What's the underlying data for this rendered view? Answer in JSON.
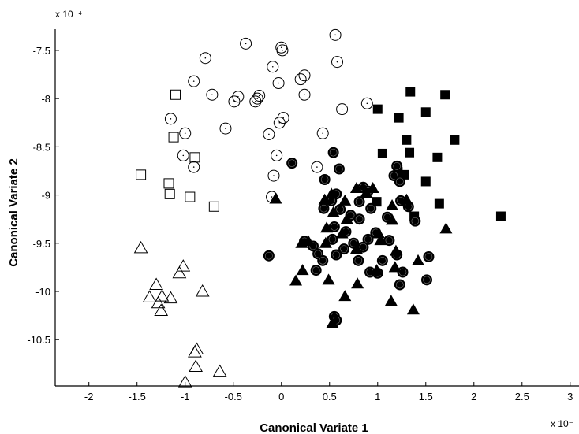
{
  "chart_data": {
    "type": "scatter",
    "title": "",
    "xlabel": "Canonical Variate 1",
    "ylabel": "Canonical Variate 2",
    "x_exponent_label": "x 10⁻",
    "y_exponent_label": "x 10⁻⁴",
    "xlim": [
      -2.35,
      3.1
    ],
    "ylim": [
      -10.98,
      -7.28
    ],
    "x_ticks": [
      -2,
      -1.5,
      -1,
      -0.5,
      0,
      0.5,
      1,
      1.5,
      2,
      2.5,
      3
    ],
    "x_tick_labels": [
      "-2",
      "-1.5",
      "-1",
      "-0.5",
      "0",
      "0.5",
      "1",
      "1.5",
      "2",
      "2.5",
      "3"
    ],
    "y_ticks": [
      -7.5,
      -8,
      -8.5,
      -9,
      -9.5,
      -10,
      -10.5
    ],
    "y_tick_labels": [
      "-7.5",
      "-8",
      "-8.5",
      "-9",
      "-9.5",
      "-10",
      "-10.5"
    ],
    "grid": false,
    "legend": "none",
    "series": [
      {
        "marker": "open-circle",
        "points": [
          [
            -0.37,
            -7.43
          ],
          [
            0.0,
            -7.47
          ],
          [
            0.01,
            -7.5
          ],
          [
            0.56,
            -7.34
          ],
          [
            -0.79,
            -7.58
          ],
          [
            0.58,
            -7.62
          ],
          [
            -0.09,
            -7.67
          ],
          [
            0.24,
            -7.76
          ],
          [
            0.2,
            -7.8
          ],
          [
            -0.91,
            -7.82
          ],
          [
            -0.03,
            -7.84
          ],
          [
            -0.72,
            -7.96
          ],
          [
            -0.45,
            -7.98
          ],
          [
            -0.23,
            -7.97
          ],
          [
            -0.25,
            -8.0
          ],
          [
            -0.49,
            -8.03
          ],
          [
            -0.27,
            -8.03
          ],
          [
            0.24,
            -7.96
          ],
          [
            0.89,
            -8.05
          ],
          [
            0.63,
            -8.11
          ],
          [
            0.02,
            -8.2
          ],
          [
            -0.02,
            -8.25
          ],
          [
            -1.15,
            -8.21
          ],
          [
            -1.0,
            -8.36
          ],
          [
            -0.58,
            -8.31
          ],
          [
            -0.13,
            -8.37
          ],
          [
            0.43,
            -8.36
          ],
          [
            -0.05,
            -8.59
          ],
          [
            -1.02,
            -8.59
          ],
          [
            -0.91,
            -8.71
          ],
          [
            0.37,
            -8.71
          ],
          [
            -0.08,
            -8.8
          ],
          [
            -0.1,
            -9.02
          ]
        ]
      },
      {
        "marker": "open-square",
        "points": [
          [
            -1.1,
            -7.96
          ],
          [
            -1.12,
            -8.4
          ],
          [
            -0.9,
            -8.61
          ],
          [
            -1.46,
            -8.79
          ],
          [
            -1.17,
            -8.88
          ],
          [
            -1.16,
            -8.99
          ],
          [
            -0.95,
            -9.02
          ],
          [
            -0.7,
            -9.12
          ]
        ]
      },
      {
        "marker": "open-triangle",
        "points": [
          [
            -1.46,
            -9.55
          ],
          [
            -1.02,
            -9.74
          ],
          [
            -1.06,
            -9.81
          ],
          [
            -1.3,
            -9.93
          ],
          [
            -0.82,
            -10.0
          ],
          [
            -1.37,
            -10.06
          ],
          [
            -1.24,
            -10.05
          ],
          [
            -1.15,
            -10.07
          ],
          [
            -1.28,
            -10.12
          ],
          [
            -1.25,
            -10.2
          ],
          [
            -0.88,
            -10.6
          ],
          [
            -0.9,
            -10.63
          ],
          [
            -0.89,
            -10.78
          ],
          [
            -0.64,
            -10.83
          ],
          [
            -1.0,
            -10.94
          ]
        ]
      },
      {
        "marker": "filled-square",
        "points": [
          [
            1.34,
            -7.93
          ],
          [
            1.7,
            -7.96
          ],
          [
            1.0,
            -8.11
          ],
          [
            1.22,
            -8.2
          ],
          [
            1.5,
            -8.14
          ],
          [
            1.3,
            -8.43
          ],
          [
            1.8,
            -8.43
          ],
          [
            1.05,
            -8.57
          ],
          [
            1.33,
            -8.56
          ],
          [
            1.62,
            -8.61
          ],
          [
            1.21,
            -8.76
          ],
          [
            1.28,
            -8.79
          ],
          [
            1.5,
            -8.86
          ],
          [
            0.99,
            -9.07
          ],
          [
            1.64,
            -9.09
          ],
          [
            1.38,
            -9.22
          ],
          [
            2.28,
            -9.22
          ]
        ]
      },
      {
        "marker": "filled-circle",
        "points": [
          [
            0.54,
            -8.56
          ],
          [
            0.11,
            -8.67
          ],
          [
            0.6,
            -8.73
          ],
          [
            1.2,
            -8.7
          ],
          [
            0.45,
            -8.84
          ],
          [
            1.17,
            -8.8
          ],
          [
            1.23,
            -8.86
          ],
          [
            0.85,
            -8.92
          ],
          [
            0.57,
            -8.99
          ],
          [
            0.9,
            -8.96
          ],
          [
            0.52,
            -9.06
          ],
          [
            0.81,
            -9.07
          ],
          [
            1.24,
            -9.06
          ],
          [
            0.44,
            -9.14
          ],
          [
            0.61,
            -9.15
          ],
          [
            0.93,
            -9.14
          ],
          [
            1.32,
            -9.12
          ],
          [
            0.72,
            -9.21
          ],
          [
            0.81,
            -9.25
          ],
          [
            1.1,
            -9.23
          ],
          [
            1.39,
            -9.27
          ],
          [
            0.55,
            -9.33
          ],
          [
            0.67,
            -9.38
          ],
          [
            0.98,
            -9.39
          ],
          [
            0.24,
            -9.48
          ],
          [
            0.33,
            -9.53
          ],
          [
            0.53,
            -9.46
          ],
          [
            0.75,
            -9.5
          ],
          [
            0.9,
            -9.46
          ],
          [
            1.12,
            -9.47
          ],
          [
            0.65,
            -9.56
          ],
          [
            0.85,
            -9.54
          ],
          [
            0.38,
            -9.61
          ],
          [
            0.57,
            -9.62
          ],
          [
            -0.13,
            -9.63
          ],
          [
            0.43,
            -9.68
          ],
          [
            0.8,
            -9.68
          ],
          [
            1.05,
            -9.68
          ],
          [
            1.2,
            -9.62
          ],
          [
            1.53,
            -9.64
          ],
          [
            0.36,
            -9.78
          ],
          [
            0.92,
            -9.8
          ],
          [
            1.0,
            -9.81
          ],
          [
            1.26,
            -9.8
          ],
          [
            1.23,
            -9.93
          ],
          [
            1.51,
            -9.88
          ],
          [
            0.55,
            -10.26
          ],
          [
            0.57,
            -10.3
          ]
        ]
      },
      {
        "marker": "filled-triangle",
        "points": [
          [
            0.78,
            -8.93
          ],
          [
            0.95,
            -8.93
          ],
          [
            0.52,
            -8.99
          ],
          [
            0.88,
            -8.98
          ],
          [
            -0.06,
            -9.04
          ],
          [
            0.45,
            -9.05
          ],
          [
            0.66,
            -9.06
          ],
          [
            1.3,
            -9.05
          ],
          [
            1.15,
            -9.11
          ],
          [
            0.54,
            -9.18
          ],
          [
            0.68,
            -9.25
          ],
          [
            1.15,
            -9.26
          ],
          [
            0.47,
            -9.34
          ],
          [
            0.63,
            -9.4
          ],
          [
            1.01,
            -9.4
          ],
          [
            1.71,
            -9.35
          ],
          [
            0.21,
            -9.5
          ],
          [
            0.28,
            -9.48
          ],
          [
            0.46,
            -9.5
          ],
          [
            1.03,
            -9.47
          ],
          [
            0.78,
            -9.56
          ],
          [
            1.19,
            -9.58
          ],
          [
            1.42,
            -9.68
          ],
          [
            0.22,
            -9.78
          ],
          [
            0.99,
            -9.78
          ],
          [
            1.18,
            -9.75
          ],
          [
            0.15,
            -9.89
          ],
          [
            0.49,
            -9.88
          ],
          [
            0.79,
            -9.92
          ],
          [
            0.66,
            -10.05
          ],
          [
            1.14,
            -10.1
          ],
          [
            1.37,
            -10.19
          ],
          [
            0.53,
            -10.33
          ]
        ]
      }
    ]
  }
}
